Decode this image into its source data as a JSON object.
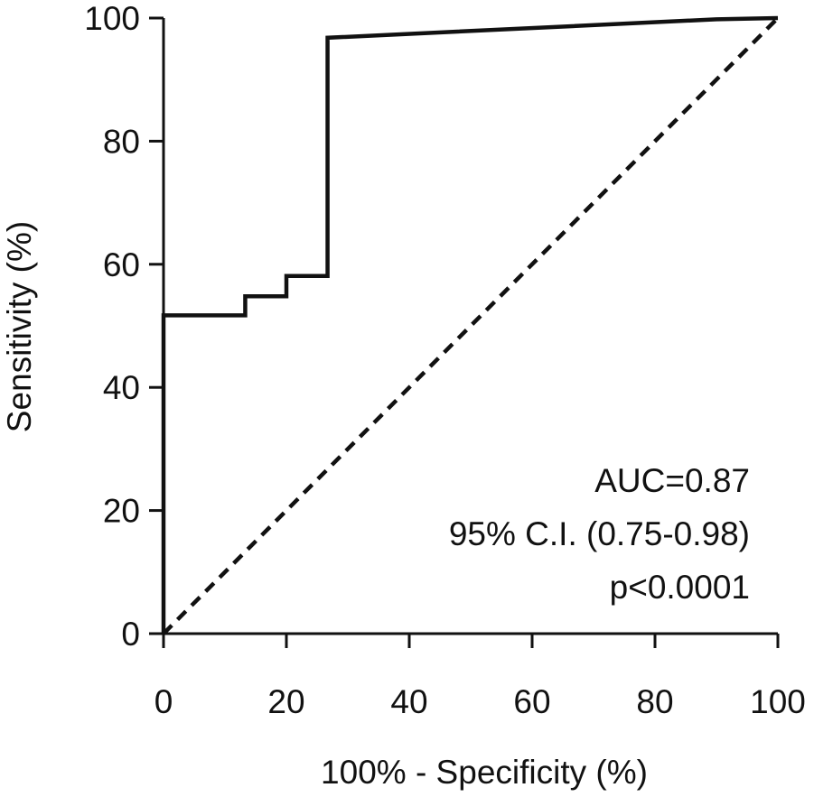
{
  "chart_data": {
    "type": "line",
    "xlabel": "100% - Specificity (%)",
    "ylabel": "Sensitivity (%)",
    "xlim": [
      0,
      100
    ],
    "ylim": [
      0,
      100
    ],
    "xticks": [
      0,
      20,
      40,
      60,
      80,
      100
    ],
    "yticks": [
      0,
      20,
      40,
      60,
      80,
      100
    ],
    "grid": false,
    "series": [
      {
        "style": "solid",
        "color": "#111111",
        "x": [
          0,
          0,
          13.3,
          13.3,
          20,
          20,
          26.7,
          26.7,
          90,
          100
        ],
        "y": [
          0,
          51.7,
          51.7,
          54.8,
          54.8,
          58.1,
          58.1,
          96.8,
          99.8,
          100
        ]
      },
      {
        "style": "dashed",
        "color": "#111111",
        "x": [
          0,
          100
        ],
        "y": [
          0,
          100
        ]
      }
    ],
    "annotations": [
      "AUC=0.87",
      "95% C.I. (0.75-0.98)",
      "p<0.0001"
    ]
  }
}
